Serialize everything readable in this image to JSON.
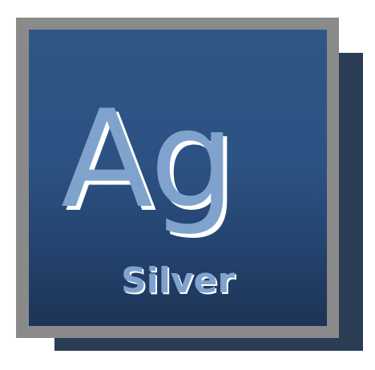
{
  "element": {
    "symbol": "Ag",
    "name": "Silver"
  },
  "colors": {
    "tile_top": "#2f5685",
    "tile_bottom": "#1d3456",
    "frame": "#8a8a8a",
    "shadow": "#2a3d55",
    "text": "#7fa3cd",
    "text_shadow": "#ffffff"
  }
}
